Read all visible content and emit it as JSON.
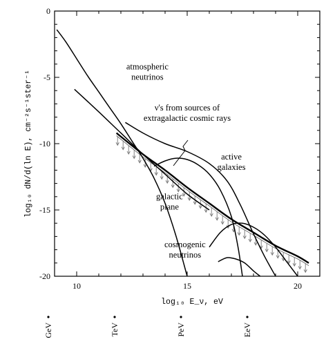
{
  "chart_data": {
    "type": "line",
    "title": "",
    "xlabel": "log₁₀ E_ν, eV",
    "ylabel": "log₁₀ dN/d(ln E), cm⁻²s⁻¹ster⁻¹",
    "xlim": [
      9,
      21
    ],
    "ylim": [
      -20,
      0
    ],
    "x_ticks": [
      "10",
      "15",
      "20"
    ],
    "y_ticks": [
      "0",
      "-5",
      "-10",
      "-15",
      "-20"
    ],
    "grid": false,
    "legend": "none",
    "energy_units": [
      {
        "label": "GeV",
        "x": 9
      },
      {
        "label": "TeV",
        "x": 12
      },
      {
        "label": "PeV",
        "x": 15
      },
      {
        "label": "EeV",
        "x": 18
      }
    ],
    "series": [
      {
        "x": [
          9.1,
          9.5,
          10.0,
          10.5,
          11.0,
          11.5,
          12.0,
          12.5,
          13.0,
          13.5,
          14.0,
          14.5,
          15.0
        ],
        "y": [
          -1.4,
          -2.3,
          -3.6,
          -4.9,
          -6.1,
          -7.3,
          -8.5,
          -9.8,
          -11.1,
          -12.6,
          -14.5,
          -17.0,
          -20.0
        ]
      },
      {
        "x": [
          9.9,
          11.0,
          12.0,
          13.0,
          14.0,
          15.0,
          16.0
        ],
        "y": [
          -5.9,
          -7.6,
          -9.2,
          -10.8,
          -12.3,
          -13.8,
          -15.0
        ]
      },
      {
        "x": [
          11.8,
          13.0,
          14.0,
          15.0,
          16.0,
          17.0,
          18.0,
          19.0,
          20.0,
          20.5
        ],
        "y": [
          -9.2,
          -10.8,
          -12.0,
          -13.3,
          -14.5,
          -15.7,
          -16.7,
          -17.7,
          -18.5,
          -19.0
        ]
      },
      {
        "x": [
          12.2,
          13.0,
          14.0,
          15.0,
          16.0,
          16.8,
          17.4,
          18.0,
          18.5,
          19.0
        ],
        "y": [
          -8.4,
          -9.2,
          -10.0,
          -10.6,
          -11.5,
          -12.8,
          -14.6,
          -16.8,
          -18.5,
          -20.0
        ]
      },
      {
        "x": [
          13.5,
          14.0,
          14.5,
          15.0,
          15.5,
          16.0,
          16.5,
          17.0,
          17.3,
          17.5
        ],
        "y": [
          -11.7,
          -11.3,
          -11.1,
          -11.2,
          -11.6,
          -12.3,
          -13.5,
          -15.5,
          -17.8,
          -20.0
        ]
      },
      {
        "x": [
          16.0,
          16.5,
          17.0,
          17.5,
          18.0,
          18.5,
          19.0,
          19.5,
          20.0
        ],
        "y": [
          -17.8,
          -16.7,
          -16.1,
          -16.0,
          -16.3,
          -16.9,
          -17.8,
          -18.9,
          -20.0
        ]
      },
      {
        "x": [
          16.4,
          16.8,
          17.2,
          17.6,
          18.0,
          18.3
        ],
        "y": [
          -18.9,
          -18.6,
          -18.7,
          -19.0,
          -19.6,
          -20.0
        ]
      }
    ],
    "limit_band": {
      "x": [
        11.8,
        13.0,
        14.0,
        15.0,
        16.0,
        17.0,
        18.0,
        19.0,
        20.0,
        20.5
      ],
      "y": [
        -9.4,
        -11.0,
        -12.2,
        -13.5,
        -14.7,
        -15.9,
        -16.9,
        -17.9,
        -18.7,
        -19.2
      ]
    },
    "annotations": [
      {
        "lines": [
          "atmospheric",
          "neutrinos"
        ],
        "x": 13.2,
        "y": -4.4
      },
      {
        "lines": [
          "ν's from sources of",
          "extragalactic cosmic rays"
        ],
        "x": 15.0,
        "y": -7.5
      },
      {
        "lines": [
          "active",
          "galaxies"
        ],
        "x": 17.0,
        "y": -11.2
      },
      {
        "lines": [
          "galactic",
          "plane"
        ],
        "x": 14.2,
        "y": -14.2
      },
      {
        "lines": [
          "cosmogenic",
          "neutrinos"
        ],
        "x": 14.9,
        "y": -17.8
      }
    ]
  }
}
